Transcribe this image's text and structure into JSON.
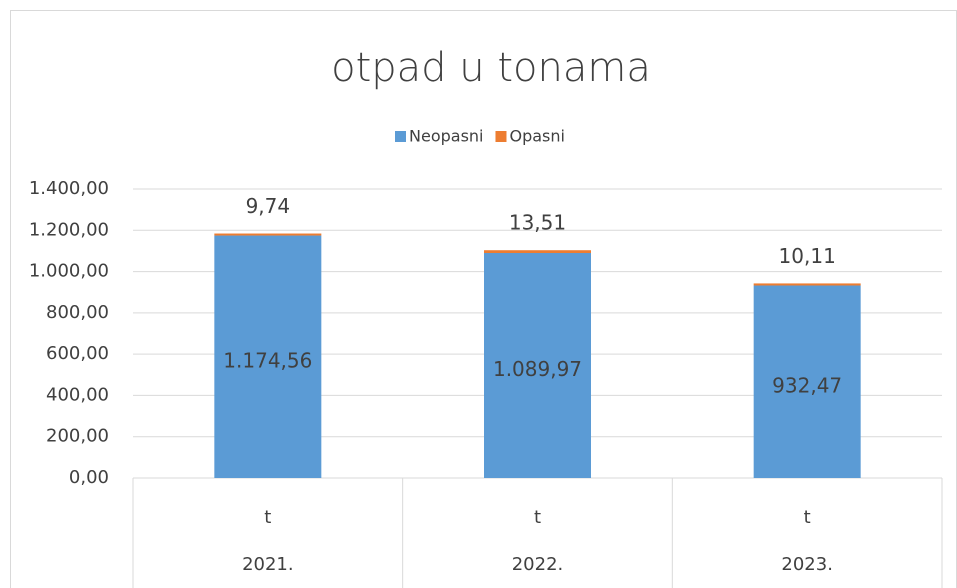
{
  "chart_data": {
    "type": "stacked_bar",
    "title": "otpad u tonama",
    "categories": [
      "t",
      "t",
      "t"
    ],
    "category_groups": [
      "2021.",
      "2022.",
      "2023."
    ],
    "series": [
      {
        "name": "Neopasni",
        "color": "#5b9bd5",
        "values": [
          1174.56,
          1089.97,
          932.47
        ],
        "value_labels": [
          "1.174,56",
          "1.089,97",
          "932,47"
        ]
      },
      {
        "name": "Opasni",
        "color": "#ed7d31",
        "values": [
          9.74,
          13.51,
          10.11
        ],
        "value_labels": [
          "9,74",
          "13,51",
          "10,11"
        ]
      }
    ],
    "ylim": [
      0,
      1400
    ],
    "yticks": [
      {
        "value": 0,
        "label": "0,00"
      },
      {
        "value": 200,
        "label": "200,00"
      },
      {
        "value": 400,
        "label": "400,00"
      },
      {
        "value": 600,
        "label": "600,00"
      },
      {
        "value": 800,
        "label": "800,00"
      },
      {
        "value": 1000,
        "label": "1.000,00"
      },
      {
        "value": 1200,
        "label": "1.200,00"
      },
      {
        "value": 1400,
        "label": "1.400,00"
      }
    ],
    "grid": true,
    "legend": "top"
  }
}
